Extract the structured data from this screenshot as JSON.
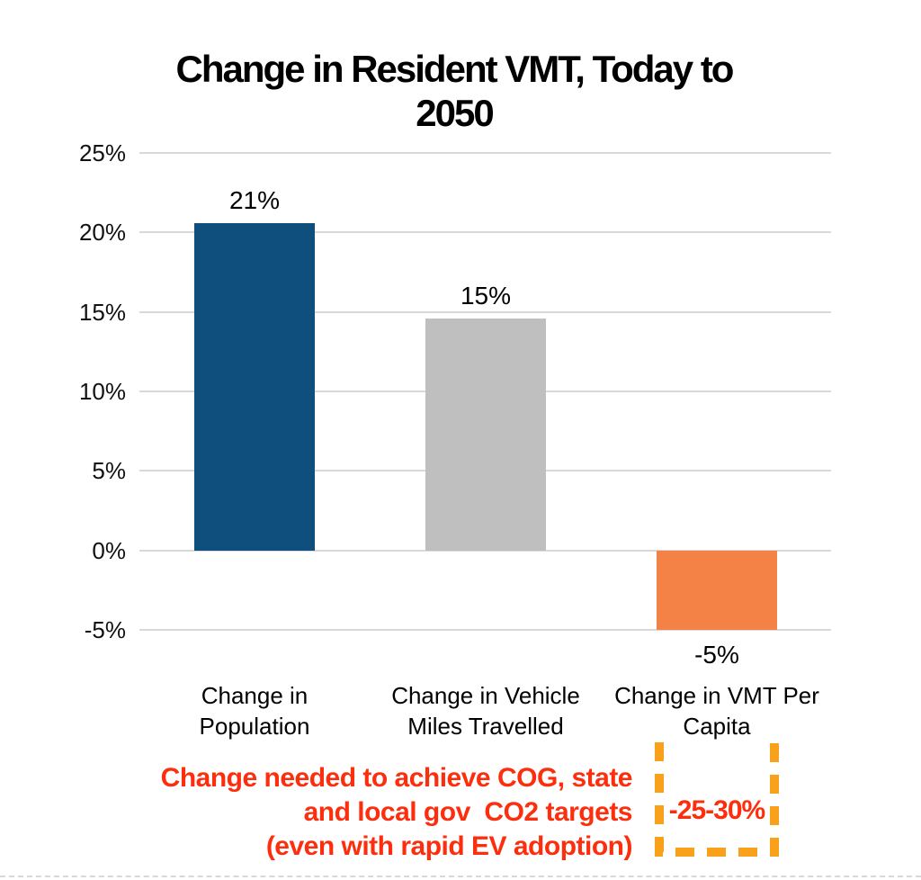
{
  "title_lines": [
    "Change in Resident VMT, Today to",
    "2050"
  ],
  "chart_data": {
    "type": "bar",
    "title": "Change in Resident VMT, Today to 2050",
    "categories": [
      "Change in Population",
      "Change in Vehicle Miles Travelled",
      "Change in VMT Per Capita"
    ],
    "values": [
      20.6,
      14.6,
      -5
    ],
    "data_labels": [
      "21%",
      "15%",
      "-5%"
    ],
    "bar_colors": [
      "#0E4F7D",
      "#BFBFBF",
      "#F48246"
    ],
    "yticks": [
      25,
      20,
      15,
      10,
      5,
      0,
      -5
    ],
    "ytick_labels": [
      "25%",
      "20%",
      "15%",
      "10%",
      "5%",
      "0%",
      "-5%"
    ],
    "ylim": [
      -5,
      25
    ],
    "xlabel": "",
    "ylabel": "",
    "grid": true,
    "gridline_color": "#D9D9D9",
    "legend": "none"
  },
  "annotation": {
    "lines": [
      "Change needed to achieve COG, state",
      "and local gov  CO2 targets",
      "(even with rapid EV adoption)"
    ],
    "text_color": "#FC2E0D",
    "box_value": "-25-30%",
    "box_value_color": "#FC2E0D",
    "box_border_color": "#F9A11B"
  }
}
